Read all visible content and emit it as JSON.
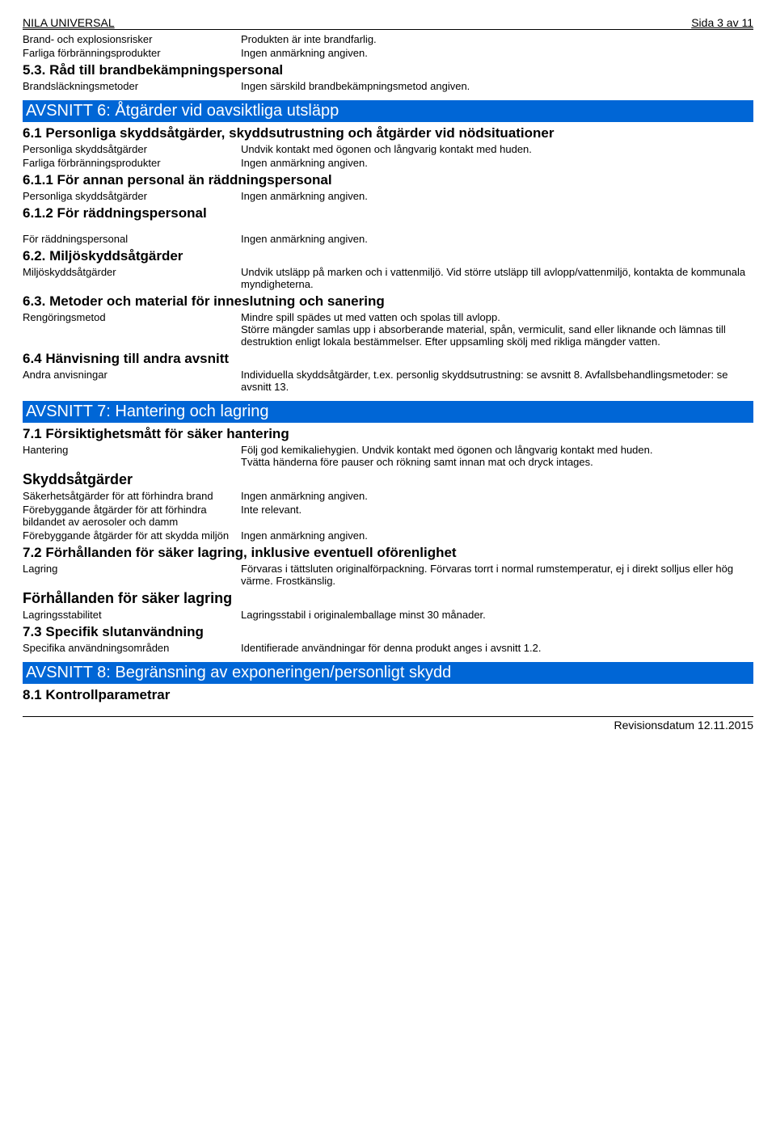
{
  "header": {
    "title": "NILA UNIVERSAL",
    "page": "Sida 3 av 11"
  },
  "r1": {
    "l": "Brand- och explosionsrisker",
    "v": "Produkten är inte brandfarlig."
  },
  "r2": {
    "l": "Farliga förbränningsprodukter",
    "v": "Ingen anmärkning angiven."
  },
  "s53": "5.3. Råd till brandbekämpningspersonal",
  "r3": {
    "l": "Brandsläckningsmetoder",
    "v": "Ingen särskild brandbekämpningsmetod angiven."
  },
  "a6": "AVSNITT 6: Åtgärder vid oavsiktliga utsläpp",
  "s61": "6.1 Personliga skyddsåtgärder, skyddsutrustning och åtgärder vid nödsituationer",
  "r4": {
    "l": "Personliga skyddsåtgärder",
    "v": "Undvik kontakt med ögonen och långvarig kontakt med huden."
  },
  "r5": {
    "l": "Farliga förbränningsprodukter",
    "v": "Ingen anmärkning angiven."
  },
  "s611": "6.1.1 För annan personal än räddningspersonal",
  "r6": {
    "l": "Personliga skyddsåtgärder",
    "v": "Ingen anmärkning angiven."
  },
  "s612": "6.1.2 För räddningspersonal",
  "r7": {
    "l": "För räddningspersonal",
    "v": "Ingen anmärkning angiven."
  },
  "s62": "6.2. Miljöskyddsåtgärder",
  "r8": {
    "l": "Miljöskyddsåtgärder",
    "v": "Undvik utsläpp på marken och i vattenmiljö. Vid större utsläpp till avlopp/vattenmiljö, kontakta de kommunala myndigheterna."
  },
  "s63": "6.3. Metoder och material för inneslutning och sanering",
  "r9": {
    "l": "Rengöringsmetod",
    "v": "Mindre spill spädes ut med vatten och spolas till avlopp.\nStörre mängder samlas upp i absorberande material, spån, vermiculit, sand eller liknande och lämnas till destruktion enligt lokala bestämmelser. Efter uppsamling skölj med rikliga mängder vatten."
  },
  "s64": "6.4 Hänvisning till andra avsnitt",
  "r10": {
    "l": "Andra anvisningar",
    "v": "Individuella skyddsåtgärder, t.ex. personlig skyddsutrustning: se avsnitt 8. Avfallsbehandlingsmetoder: se avsnitt 13."
  },
  "a7": "AVSNITT 7: Hantering och lagring",
  "s71": "7.1 Försiktighetsmått för säker hantering",
  "r11": {
    "l": "Hantering",
    "v": "Följ god kemikaliehygien. Undvik kontakt med ögonen och långvarig kontakt med huden.\nTvätta händerna före pauser och rökning samt innan mat och dryck intages."
  },
  "s71b": "Skyddsåtgärder",
  "r12": {
    "l": "Säkerhetsåtgärder för att förhindra brand",
    "v": "Ingen anmärkning angiven."
  },
  "r13": {
    "l": "Förebyggande åtgärder för att förhindra bildandet av aerosoler och damm",
    "v": "Inte relevant."
  },
  "r14": {
    "l": "Förebyggande åtgärder för att skydda miljön",
    "v": "Ingen anmärkning angiven."
  },
  "s72": "7.2 Förhållanden för säker lagring, inklusive eventuell oförenlighet",
  "r15": {
    "l": "Lagring",
    "v": "Förvaras i tättsluten originalförpackning. Förvaras torrt i normal rumstemperatur, ej i direkt solljus eller hög värme. Frostkänslig."
  },
  "s72b": "Förhållanden för säker lagring",
  "r16": {
    "l": "Lagringsstabilitet",
    "v": "Lagringsstabil i originalemballage minst 30 månader."
  },
  "s73": "7.3 Specifik slutanvändning",
  "r17": {
    "l": "Specifika användningsområden",
    "v": "Identifierade användningar för denna produkt anges i avsnitt 1.2."
  },
  "a8": "AVSNITT 8: Begränsning av exponeringen/personligt skydd",
  "s81": "8.1 Kontrollparametrar",
  "footer": "Revisionsdatum 12.11.2015"
}
